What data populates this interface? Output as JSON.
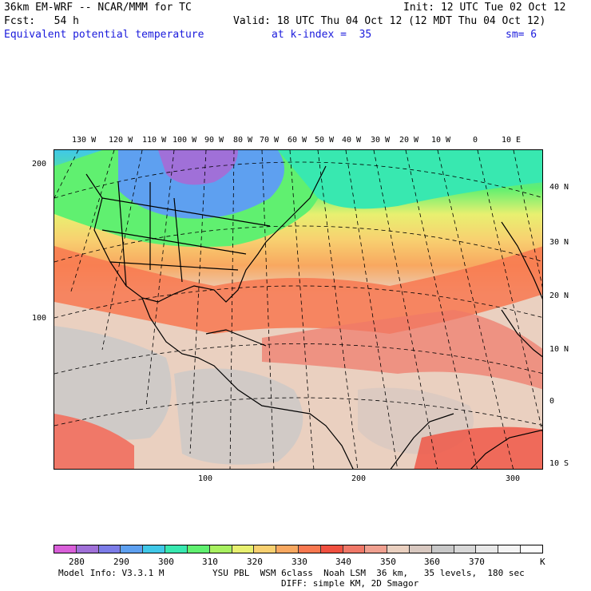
{
  "header": {
    "line1_left": "36km EM-WRF -- NCAR/MMM for TC",
    "line1_right": "Init: 12 UTC Tue 02 Oct 12",
    "line2_left": "Fcst:   54 h",
    "line2_right": "Valid: 18 UTC Thu 04 Oct 12 (12 MDT Thu 04 Oct 12)",
    "field_name": "Equivalent potential temperature",
    "level": "at k-index =  35",
    "smoothing": "sm= 6"
  },
  "map": {
    "top_lon_labels": [
      "130 W",
      "120 W",
      "110 W",
      "100 W",
      "90 W",
      "80 W",
      "70 W",
      "60 W",
      "50 W",
      "40 W",
      "30 W",
      "20 W",
      "10 W",
      "0",
      "10 E"
    ],
    "right_lat_labels": [
      "40 N",
      "30 N",
      "20 N",
      "10 N",
      "0",
      "10 S"
    ],
    "left_grid_labels": [
      "200",
      "100"
    ],
    "bottom_grid_labels": [
      "100",
      "200",
      "300"
    ]
  },
  "colorbar": {
    "colors": [
      "#d95fd9",
      "#a070d8",
      "#7c7ce8",
      "#5ea0f0",
      "#40c8e8",
      "#38e8b0",
      "#60f070",
      "#a8f060",
      "#e8f070",
      "#f8d070",
      "#f8a860",
      "#f87850",
      "#f05040",
      "#f07868",
      "#f0a090",
      "#ead0c0",
      "#d8c8c0",
      "#c8c8c8",
      "#d8d8d8",
      "#e8e8e8",
      "#f4f4f4",
      "#fcfcfc"
    ],
    "labels": [
      "280",
      "290",
      "300",
      "310",
      "320",
      "330",
      "340",
      "350",
      "360",
      "370"
    ],
    "unit": "K"
  },
  "footer": {
    "model_info": "Model Info: V3.3.1 M",
    "physics": "YSU PBL  WSM 6class  Noah LSM  36 km,   35 levels,  180 sec",
    "diffusion": "DIFF: simple KM, 2D Smagor"
  }
}
